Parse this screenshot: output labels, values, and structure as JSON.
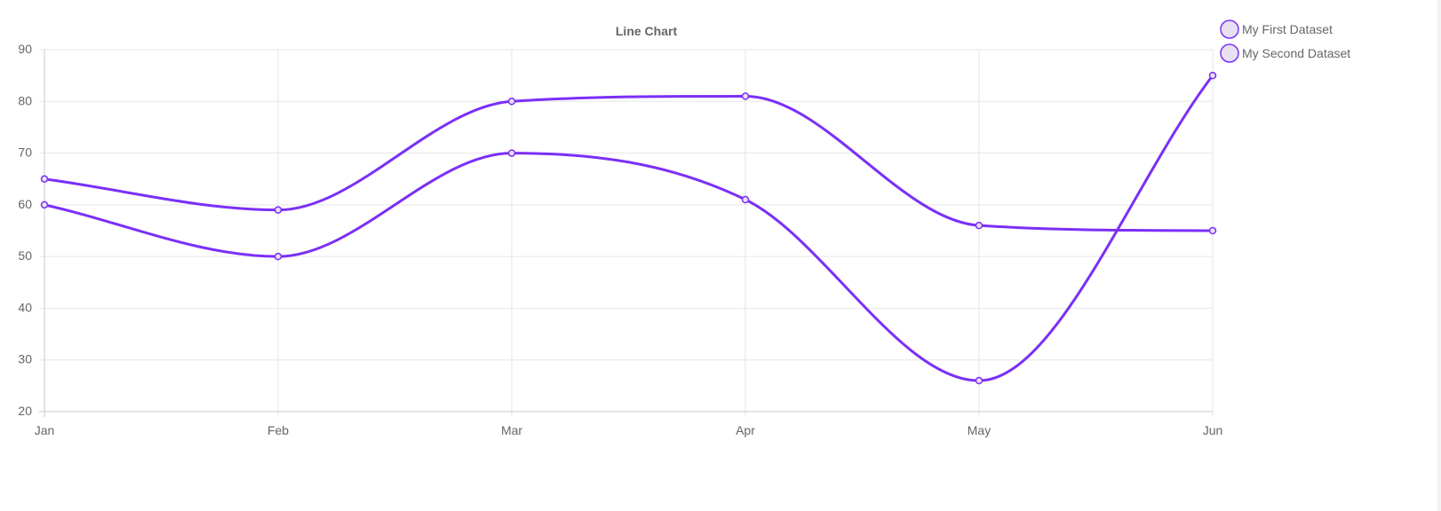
{
  "chart_data": {
    "type": "line",
    "title": "Line Chart",
    "xlabel": "",
    "ylabel": "",
    "categories": [
      "Jan",
      "Feb",
      "Mar",
      "Apr",
      "May",
      "Jun"
    ],
    "ylim": [
      20,
      90
    ],
    "yticks": [
      20,
      30,
      40,
      50,
      60,
      70,
      80,
      90
    ],
    "grid": true,
    "legend_position": "top-right",
    "series": [
      {
        "name": "My First Dataset",
        "values": [
          65,
          59,
          80,
          81,
          56,
          55
        ],
        "color": "#7b2ff7",
        "point_fill": "#e6e0ef"
      },
      {
        "name": "My Second Dataset",
        "values": [
          60,
          50,
          70,
          61,
          26,
          85
        ],
        "color": "#7b2ff7",
        "point_fill": "#e6e0ef"
      }
    ]
  },
  "colors": {
    "grid": "#e6e6e6",
    "axis": "#c8c8c8",
    "tick_text": "#666666",
    "title_text": "#666666",
    "legend_text": "#666666"
  }
}
